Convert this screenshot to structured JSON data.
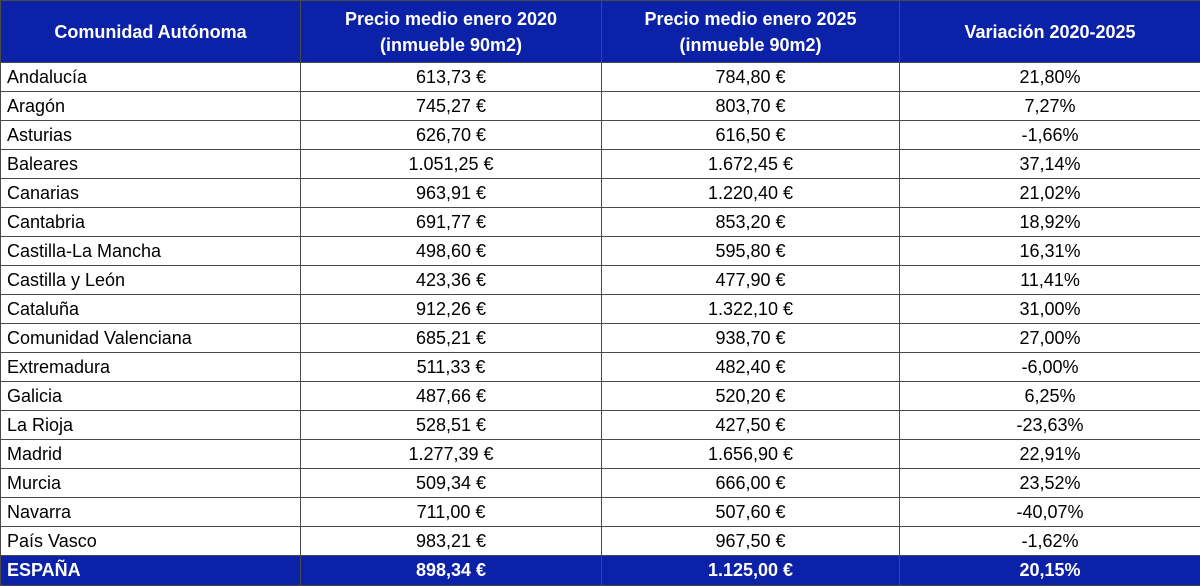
{
  "headers": {
    "region": "Comunidad Autónoma",
    "price2020_line1": "Precio medio enero 2020",
    "price2020_line2": "(inmueble 90m2)",
    "price2025_line1": "Precio medio enero 2025",
    "price2025_line2": "(inmueble 90m2)",
    "variation": "Variación 2020-2025"
  },
  "rows": [
    {
      "region": "Andalucía",
      "p2020": "613,73 €",
      "p2025": "784,80 €",
      "variation": "21,80%"
    },
    {
      "region": "Aragón",
      "p2020": "745,27 €",
      "p2025": "803,70 €",
      "variation": "7,27%"
    },
    {
      "region": "Asturias",
      "p2020": "626,70 €",
      "p2025": "616,50 €",
      "variation": "-1,66%"
    },
    {
      "region": "Baleares",
      "p2020": "1.051,25 €",
      "p2025": "1.672,45 €",
      "variation": "37,14%"
    },
    {
      "region": "Canarias",
      "p2020": "963,91 €",
      "p2025": "1.220,40 €",
      "variation": "21,02%"
    },
    {
      "region": "Cantabria",
      "p2020": "691,77 €",
      "p2025": "853,20 €",
      "variation": "18,92%"
    },
    {
      "region": "Castilla-La Mancha",
      "p2020": "498,60 €",
      "p2025": "595,80 €",
      "variation": "16,31%"
    },
    {
      "region": "Castilla y León",
      "p2020": "423,36 €",
      "p2025": "477,90 €",
      "variation": "11,41%"
    },
    {
      "region": "Cataluña",
      "p2020": "912,26 €",
      "p2025": "1.322,10 €",
      "variation": "31,00%"
    },
    {
      "region": "Comunidad Valenciana",
      "p2020": "685,21 €",
      "p2025": "938,70 €",
      "variation": "27,00%"
    },
    {
      "region": "Extremadura",
      "p2020": "511,33 €",
      "p2025": "482,40 €",
      "variation": "-6,00%"
    },
    {
      "region": "Galicia",
      "p2020": "487,66 €",
      "p2025": "520,20 €",
      "variation": "6,25%"
    },
    {
      "region": "La Rioja",
      "p2020": "528,51 €",
      "p2025": "427,50 €",
      "variation": "-23,63%"
    },
    {
      "region": "Madrid",
      "p2020": "1.277,39 €",
      "p2025": "1.656,90 €",
      "variation": "22,91%"
    },
    {
      "region": "Murcia",
      "p2020": "509,34 €",
      "p2025": "666,00 €",
      "variation": "23,52%"
    },
    {
      "region": "Navarra",
      "p2020": "711,00 €",
      "p2025": "507,60 €",
      "variation": "-40,07%"
    },
    {
      "region": "País Vasco",
      "p2020": "983,21 €",
      "p2025": "967,50 €",
      "variation": "-1,62%"
    }
  ],
  "total": {
    "region": "ESPAÑA",
    "p2020": "898,34 €",
    "p2025": "1.125,00 €",
    "variation": "20,15%"
  },
  "colors": {
    "header_bg": "#0a21a8",
    "header_text": "#ffffff",
    "border": "#4a4a4a"
  }
}
